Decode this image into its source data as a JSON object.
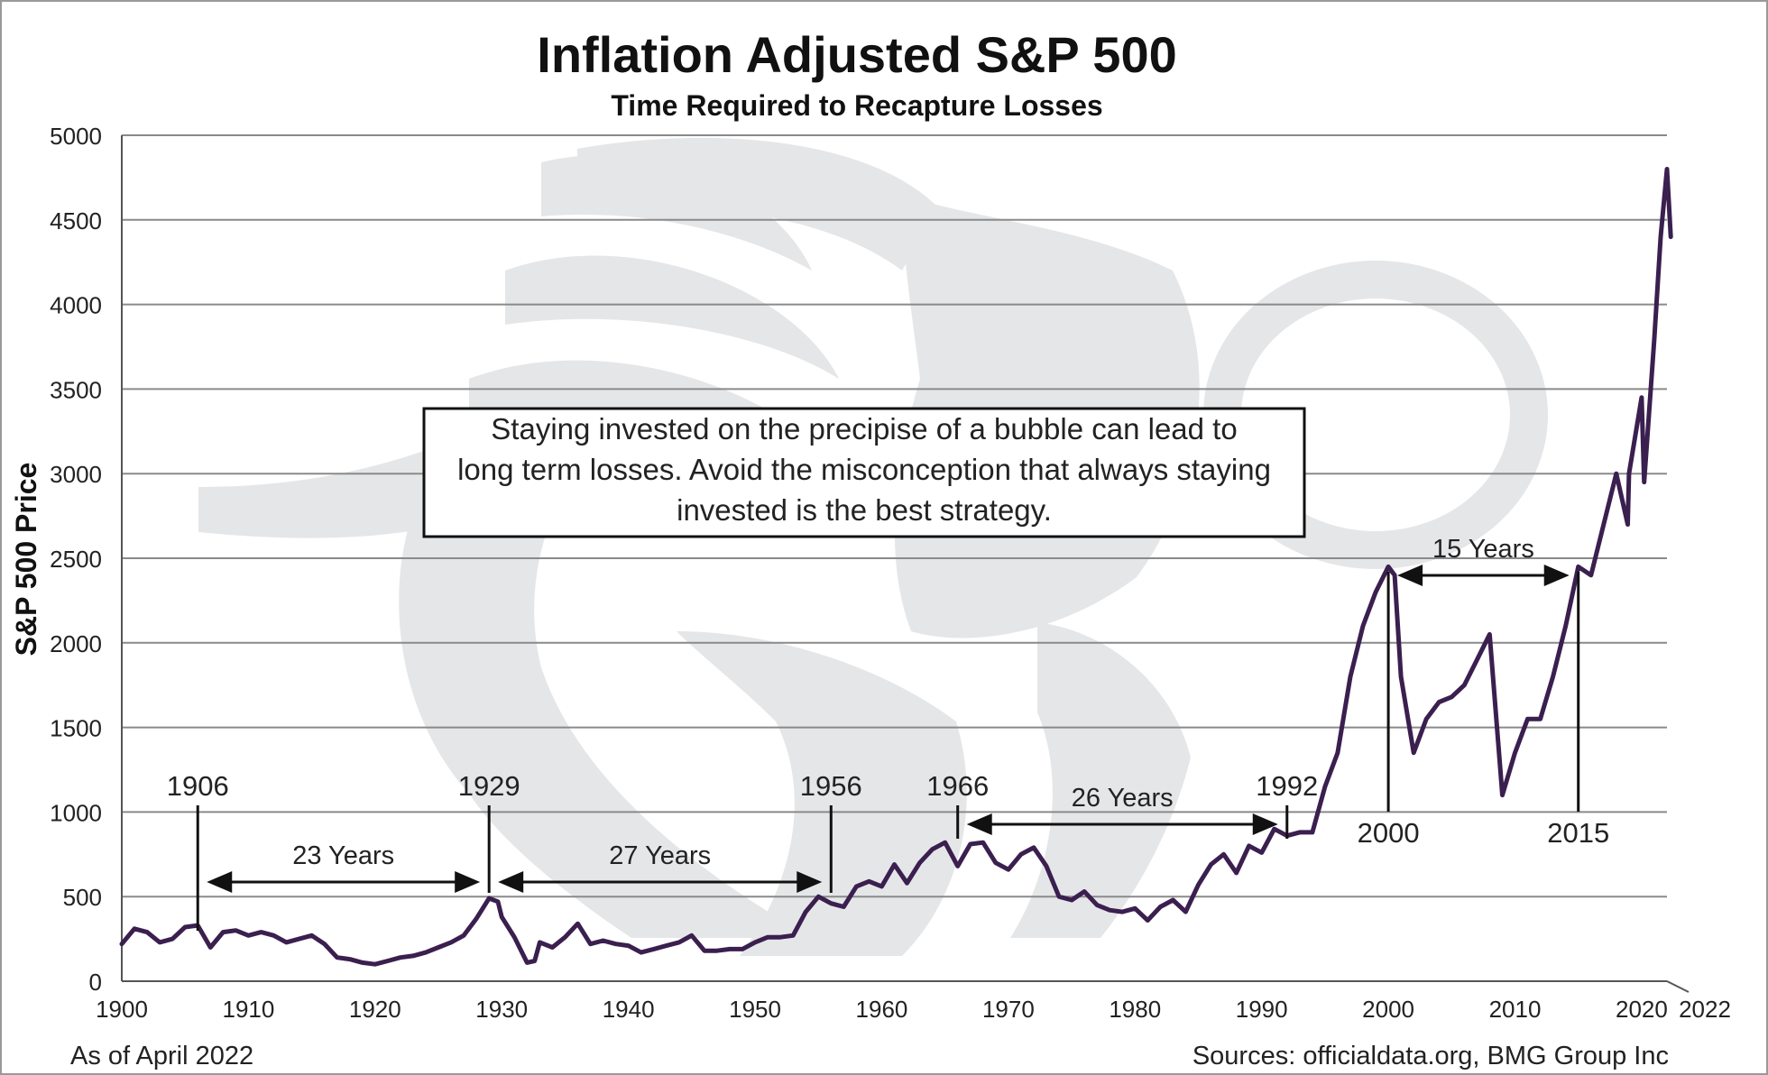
{
  "colors": {
    "line": "#3a1f4f",
    "grid": "#8a8a8a",
    "axis": "#555555",
    "watermark": "#e5e6e8",
    "frame": "#999999"
  },
  "footer": {
    "as_of": "As of April 2022",
    "sources": "Sources: officialdata.org, BMG Group Inc"
  },
  "chart_data": {
    "type": "line",
    "title": "Inflation Adjusted S&P 500",
    "subtitle": "Time Required to Recapture Losses",
    "xlabel": "",
    "ylabel": "S&P 500 Price",
    "xlim": [
      1900,
      2022
    ],
    "ylim": [
      0,
      5000
    ],
    "x_ticks": [
      "1900",
      "1910",
      "1920",
      "1930",
      "1940",
      "1950",
      "1960",
      "1970",
      "1980",
      "1990",
      "2000",
      "2010",
      "2020",
      "2022"
    ],
    "y_ticks": [
      "0",
      "500",
      "1000",
      "1500",
      "2000",
      "2500",
      "3000",
      "3500",
      "4000",
      "4500",
      "5000"
    ],
    "grid": true,
    "series": [
      {
        "name": "",
        "x": [
          1900,
          1901,
          1902,
          1903,
          1904,
          1905,
          1906,
          1907,
          1908,
          1909,
          1910,
          1911,
          1912,
          1913,
          1914,
          1915,
          1916,
          1917,
          1918,
          1919,
          1920,
          1921,
          1922,
          1923,
          1924,
          1925,
          1926,
          1927,
          1928,
          1929,
          1929.7,
          1930,
          1931,
          1932,
          1932.6,
          1933,
          1934,
          1935,
          1936,
          1937,
          1938,
          1939,
          1940,
          1941,
          1942,
          1943,
          1944,
          1945,
          1946,
          1947,
          1948,
          1949,
          1950,
          1951,
          1952,
          1953,
          1954,
          1955,
          1956,
          1957,
          1958,
          1959,
          1960,
          1961,
          1962,
          1963,
          1964,
          1965,
          1966,
          1967,
          1968,
          1969,
          1970,
          1971,
          1972,
          1973,
          1974,
          1975,
          1976,
          1977,
          1978,
          1979,
          1980,
          1981,
          1982,
          1983,
          1984,
          1985,
          1986,
          1987,
          1988,
          1989,
          1990,
          1991,
          1992,
          1993,
          1994,
          1995,
          1996,
          1997,
          1998,
          1999,
          2000,
          2000.5,
          2001,
          2002,
          2003,
          2004,
          2005,
          2006,
          2007,
          2008,
          2009,
          2010,
          2011,
          2012,
          2013,
          2014,
          2015,
          2016,
          2017,
          2018,
          2018.9,
          2019,
          2020,
          2020.2,
          2021,
          2021.5,
          2022,
          2022.3
        ],
        "values": [
          220,
          310,
          290,
          230,
          250,
          320,
          330,
          200,
          290,
          300,
          270,
          290,
          270,
          230,
          250,
          270,
          220,
          140,
          130,
          110,
          100,
          120,
          140,
          150,
          170,
          200,
          230,
          270,
          370,
          490,
          470,
          380,
          260,
          110,
          120,
          230,
          200,
          260,
          340,
          220,
          240,
          220,
          210,
          170,
          190,
          210,
          230,
          270,
          180,
          180,
          190,
          190,
          230,
          260,
          260,
          270,
          410,
          500,
          460,
          440,
          560,
          590,
          560,
          690,
          580,
          700,
          780,
          820,
          680,
          810,
          820,
          700,
          660,
          750,
          790,
          680,
          500,
          480,
          530,
          450,
          420,
          410,
          430,
          360,
          440,
          480,
          410,
          570,
          690,
          750,
          640,
          800,
          760,
          900,
          860,
          880,
          880,
          1150,
          1350,
          1800,
          2100,
          2300,
          2450,
          2400,
          1800,
          1350,
          1550,
          1650,
          1680,
          1750,
          1900,
          2050,
          1100,
          1350,
          1550,
          1550,
          1800,
          2100,
          2450,
          2400,
          2700,
          3000,
          2700,
          3000,
          3450,
          2950,
          3800,
          4400,
          4800,
          4400
        ]
      }
    ],
    "annotations": {
      "note": "Staying invested on the precipise of a bubble can lead to long term losses.  Avoid the misconception that always staying invested is the best strategy.",
      "markers": [
        {
          "label": "1906",
          "year": 1906
        },
        {
          "label": "1929",
          "year": 1929
        },
        {
          "label": "1956",
          "year": 1956
        },
        {
          "label": "1966",
          "year": 1966
        },
        {
          "label": "1992",
          "year": 1992
        },
        {
          "label": "2000",
          "year": 2000
        },
        {
          "label": "2015",
          "year": 2015
        }
      ],
      "spans": [
        {
          "label": "23 Years",
          "from": 1906,
          "to": 1929
        },
        {
          "label": "27 Years",
          "from": 1929,
          "to": 1956
        },
        {
          "label": "26 Years",
          "from": 1966,
          "to": 1992
        },
        {
          "label": "15 Years",
          "from": 2000,
          "to": 2015
        }
      ]
    }
  }
}
